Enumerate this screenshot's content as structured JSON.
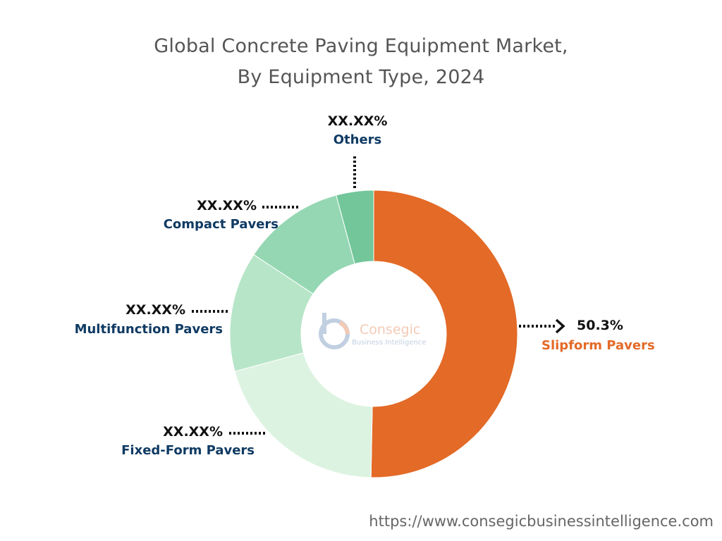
{
  "title_line1": "Global Concrete Paving Equipment Market,",
  "title_line2": "By Equipment Type, 2024",
  "chart_data": {
    "type": "pie",
    "variant": "donut",
    "title": "Global Concrete Paving Equipment Market, By Equipment Type, 2024",
    "slices": [
      {
        "label": "Slipform Pavers",
        "value": 50.3,
        "value_label": "50.3%",
        "color": "#E36A27",
        "label_color": "#E36A27"
      },
      {
        "label": "Fixed-Form Pavers",
        "value": 20.5,
        "value_label": "XX.XX%",
        "color": "#DDF3E1",
        "label_color": "#0F3A63"
      },
      {
        "label": "Multifunction Pavers",
        "value": 13.5,
        "value_label": "XX.XX%",
        "color": "#B7E5C8",
        "label_color": "#0F3A63"
      },
      {
        "label": "Compact Pavers",
        "value": 11.5,
        "value_label": "XX.XX%",
        "color": "#95D7B3",
        "label_color": "#0F3A63"
      },
      {
        "label": "Others",
        "value": 4.2,
        "value_label": "XX.XX%",
        "color": "#72C69A",
        "label_color": "#0F3A63"
      }
    ]
  },
  "logo": {
    "name": "Consegic",
    "tagline": "Business Intelligence",
    "mark": "b"
  },
  "colors": {
    "accent": "#E36A27",
    "label_navy": "#0F3A63"
  },
  "website_url": "https://www.consegicbusinessintelligence.com"
}
